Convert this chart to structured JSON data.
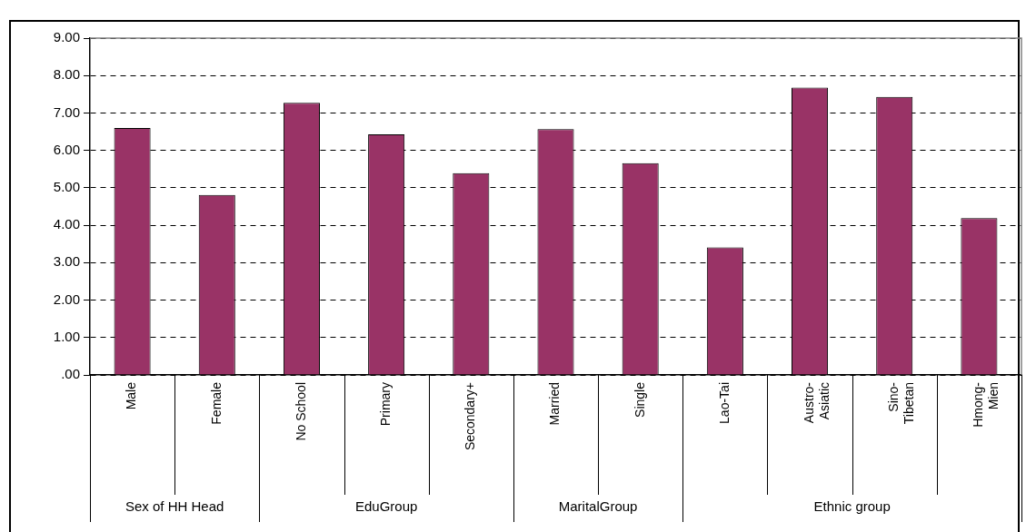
{
  "chart_data": {
    "type": "bar",
    "categories": [
      "Male",
      "Female",
      "No School",
      "Primary",
      "Secondary+",
      "Married",
      "Single",
      "Lao-Tai",
      "Austro-\nAsiatic",
      "Sino-\nTibetan",
      "Hmong-\nMien"
    ],
    "values": [
      6.6,
      4.81,
      7.27,
      6.43,
      5.39,
      6.57,
      5.66,
      3.41,
      7.68,
      7.43,
      4.19
    ],
    "color": "#993366",
    "ylim": [
      0,
      9
    ],
    "yticks": [
      {
        "value": 0,
        "label": ".00"
      },
      {
        "value": 1,
        "label": "1.00"
      },
      {
        "value": 2,
        "label": "2.00"
      },
      {
        "value": 3,
        "label": "3.00"
      },
      {
        "value": 4,
        "label": "4.00"
      },
      {
        "value": 5,
        "label": "5.00"
      },
      {
        "value": 6,
        "label": "6.00"
      },
      {
        "value": 7,
        "label": "7.00"
      },
      {
        "value": 8,
        "label": "8.00"
      },
      {
        "value": 9,
        "label": "9.00"
      }
    ],
    "grid": "y",
    "annotations": [
      "Sex of HH Head",
      "EduGroup",
      "MaritalGroup",
      "Ethnic group"
    ]
  }
}
